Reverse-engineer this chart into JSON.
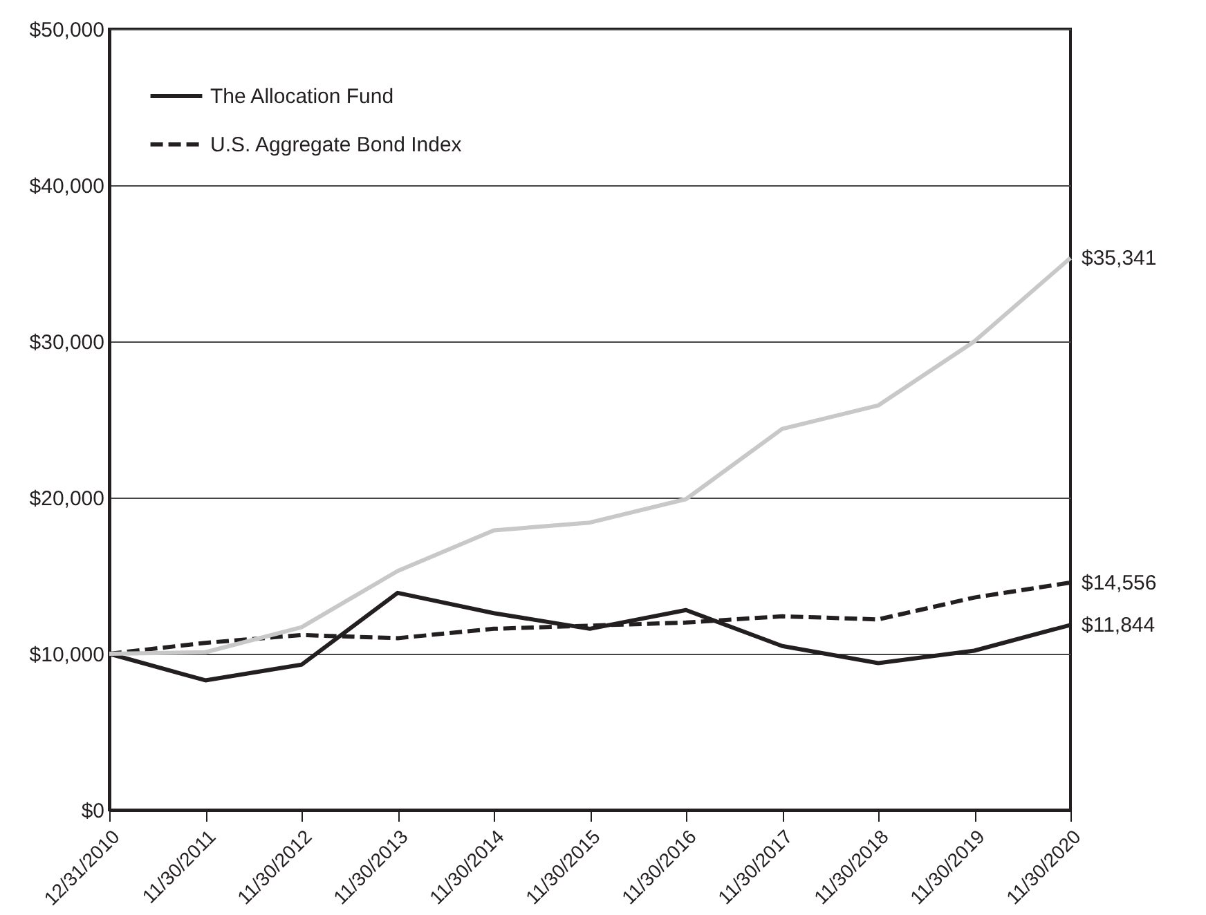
{
  "chart_data": {
    "type": "line",
    "categories": [
      "12/31/2010",
      "11/30/2011",
      "11/30/2012",
      "11/30/2013",
      "11/30/2014",
      "11/30/2015",
      "11/30/2016",
      "11/30/2017",
      "11/30/2018",
      "11/30/2019",
      "11/30/2020"
    ],
    "series": [
      {
        "name": "The Allocation Fund",
        "color": "#231f20",
        "line_style": "solid",
        "values": [
          10000,
          8300,
          9300,
          13900,
          12600,
          11600,
          12800,
          10500,
          9400,
          10200,
          11844
        ],
        "value_labels": [
          null,
          null,
          null,
          null,
          null,
          null,
          null,
          null,
          null,
          null,
          "$11,844"
        ]
      },
      {
        "name": "U.S. Aggregate Bond Index",
        "color": "#231f20",
        "line_style": "dashed",
        "values": [
          10000,
          10700,
          11200,
          11000,
          11600,
          11800,
          12000,
          12400,
          12200,
          13600,
          14556
        ],
        "value_labels": [
          null,
          null,
          null,
          null,
          null,
          null,
          null,
          null,
          null,
          null,
          "$14,556"
        ]
      },
      {
        "color": "#c8c8c8",
        "line_style": "solid",
        "values": [
          10000,
          10100,
          11700,
          15300,
          17900,
          18400,
          19900,
          24400,
          25900,
          30000,
          35341
        ],
        "value_labels": [
          null,
          null,
          null,
          null,
          null,
          null,
          null,
          null,
          null,
          null,
          "$35,341"
        ]
      }
    ],
    "ylim": [
      0,
      50000
    ],
    "yticks": [
      {
        "value": 0,
        "label": "$0"
      },
      {
        "value": 10000,
        "label": "$10,000"
      },
      {
        "value": 20000,
        "label": "$20,000"
      },
      {
        "value": 30000,
        "label": "$30,000"
      },
      {
        "value": 40000,
        "label": "$40,000"
      },
      {
        "value": 50000,
        "label": "$50,000"
      }
    ],
    "grid": "y",
    "legend": "top left"
  }
}
